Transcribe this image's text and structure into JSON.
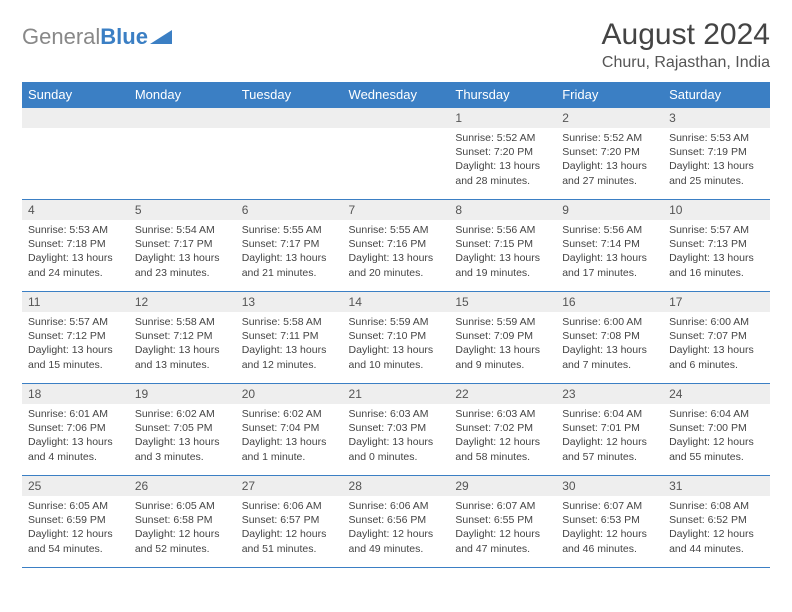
{
  "logo": {
    "part1": "General",
    "part2": "Blue"
  },
  "title": "August 2024",
  "location": "Churu, Rajasthan, India",
  "colors": {
    "header_bg": "#3b7fc4",
    "header_text": "#ffffff",
    "daynum_bg": "#eeeeee",
    "border": "#3b7fc4",
    "text": "#444444"
  },
  "fonts": {
    "title_size": 30,
    "location_size": 16,
    "header_size": 13,
    "daynum_size": 12,
    "content_size": 10.5
  },
  "weekdays": [
    "Sunday",
    "Monday",
    "Tuesday",
    "Wednesday",
    "Thursday",
    "Friday",
    "Saturday"
  ],
  "weeks": [
    [
      null,
      null,
      null,
      null,
      {
        "n": "1",
        "sr": "Sunrise: 5:52 AM",
        "ss": "Sunset: 7:20 PM",
        "d1": "Daylight: 13 hours",
        "d2": "and 28 minutes."
      },
      {
        "n": "2",
        "sr": "Sunrise: 5:52 AM",
        "ss": "Sunset: 7:20 PM",
        "d1": "Daylight: 13 hours",
        "d2": "and 27 minutes."
      },
      {
        "n": "3",
        "sr": "Sunrise: 5:53 AM",
        "ss": "Sunset: 7:19 PM",
        "d1": "Daylight: 13 hours",
        "d2": "and 25 minutes."
      }
    ],
    [
      {
        "n": "4",
        "sr": "Sunrise: 5:53 AM",
        "ss": "Sunset: 7:18 PM",
        "d1": "Daylight: 13 hours",
        "d2": "and 24 minutes."
      },
      {
        "n": "5",
        "sr": "Sunrise: 5:54 AM",
        "ss": "Sunset: 7:17 PM",
        "d1": "Daylight: 13 hours",
        "d2": "and 23 minutes."
      },
      {
        "n": "6",
        "sr": "Sunrise: 5:55 AM",
        "ss": "Sunset: 7:17 PM",
        "d1": "Daylight: 13 hours",
        "d2": "and 21 minutes."
      },
      {
        "n": "7",
        "sr": "Sunrise: 5:55 AM",
        "ss": "Sunset: 7:16 PM",
        "d1": "Daylight: 13 hours",
        "d2": "and 20 minutes."
      },
      {
        "n": "8",
        "sr": "Sunrise: 5:56 AM",
        "ss": "Sunset: 7:15 PM",
        "d1": "Daylight: 13 hours",
        "d2": "and 19 minutes."
      },
      {
        "n": "9",
        "sr": "Sunrise: 5:56 AM",
        "ss": "Sunset: 7:14 PM",
        "d1": "Daylight: 13 hours",
        "d2": "and 17 minutes."
      },
      {
        "n": "10",
        "sr": "Sunrise: 5:57 AM",
        "ss": "Sunset: 7:13 PM",
        "d1": "Daylight: 13 hours",
        "d2": "and 16 minutes."
      }
    ],
    [
      {
        "n": "11",
        "sr": "Sunrise: 5:57 AM",
        "ss": "Sunset: 7:12 PM",
        "d1": "Daylight: 13 hours",
        "d2": "and 15 minutes."
      },
      {
        "n": "12",
        "sr": "Sunrise: 5:58 AM",
        "ss": "Sunset: 7:12 PM",
        "d1": "Daylight: 13 hours",
        "d2": "and 13 minutes."
      },
      {
        "n": "13",
        "sr": "Sunrise: 5:58 AM",
        "ss": "Sunset: 7:11 PM",
        "d1": "Daylight: 13 hours",
        "d2": "and 12 minutes."
      },
      {
        "n": "14",
        "sr": "Sunrise: 5:59 AM",
        "ss": "Sunset: 7:10 PM",
        "d1": "Daylight: 13 hours",
        "d2": "and 10 minutes."
      },
      {
        "n": "15",
        "sr": "Sunrise: 5:59 AM",
        "ss": "Sunset: 7:09 PM",
        "d1": "Daylight: 13 hours",
        "d2": "and 9 minutes."
      },
      {
        "n": "16",
        "sr": "Sunrise: 6:00 AM",
        "ss": "Sunset: 7:08 PM",
        "d1": "Daylight: 13 hours",
        "d2": "and 7 minutes."
      },
      {
        "n": "17",
        "sr": "Sunrise: 6:00 AM",
        "ss": "Sunset: 7:07 PM",
        "d1": "Daylight: 13 hours",
        "d2": "and 6 minutes."
      }
    ],
    [
      {
        "n": "18",
        "sr": "Sunrise: 6:01 AM",
        "ss": "Sunset: 7:06 PM",
        "d1": "Daylight: 13 hours",
        "d2": "and 4 minutes."
      },
      {
        "n": "19",
        "sr": "Sunrise: 6:02 AM",
        "ss": "Sunset: 7:05 PM",
        "d1": "Daylight: 13 hours",
        "d2": "and 3 minutes."
      },
      {
        "n": "20",
        "sr": "Sunrise: 6:02 AM",
        "ss": "Sunset: 7:04 PM",
        "d1": "Daylight: 13 hours",
        "d2": "and 1 minute."
      },
      {
        "n": "21",
        "sr": "Sunrise: 6:03 AM",
        "ss": "Sunset: 7:03 PM",
        "d1": "Daylight: 13 hours",
        "d2": "and 0 minutes."
      },
      {
        "n": "22",
        "sr": "Sunrise: 6:03 AM",
        "ss": "Sunset: 7:02 PM",
        "d1": "Daylight: 12 hours",
        "d2": "and 58 minutes."
      },
      {
        "n": "23",
        "sr": "Sunrise: 6:04 AM",
        "ss": "Sunset: 7:01 PM",
        "d1": "Daylight: 12 hours",
        "d2": "and 57 minutes."
      },
      {
        "n": "24",
        "sr": "Sunrise: 6:04 AM",
        "ss": "Sunset: 7:00 PM",
        "d1": "Daylight: 12 hours",
        "d2": "and 55 minutes."
      }
    ],
    [
      {
        "n": "25",
        "sr": "Sunrise: 6:05 AM",
        "ss": "Sunset: 6:59 PM",
        "d1": "Daylight: 12 hours",
        "d2": "and 54 minutes."
      },
      {
        "n": "26",
        "sr": "Sunrise: 6:05 AM",
        "ss": "Sunset: 6:58 PM",
        "d1": "Daylight: 12 hours",
        "d2": "and 52 minutes."
      },
      {
        "n": "27",
        "sr": "Sunrise: 6:06 AM",
        "ss": "Sunset: 6:57 PM",
        "d1": "Daylight: 12 hours",
        "d2": "and 51 minutes."
      },
      {
        "n": "28",
        "sr": "Sunrise: 6:06 AM",
        "ss": "Sunset: 6:56 PM",
        "d1": "Daylight: 12 hours",
        "d2": "and 49 minutes."
      },
      {
        "n": "29",
        "sr": "Sunrise: 6:07 AM",
        "ss": "Sunset: 6:55 PM",
        "d1": "Daylight: 12 hours",
        "d2": "and 47 minutes."
      },
      {
        "n": "30",
        "sr": "Sunrise: 6:07 AM",
        "ss": "Sunset: 6:53 PM",
        "d1": "Daylight: 12 hours",
        "d2": "and 46 minutes."
      },
      {
        "n": "31",
        "sr": "Sunrise: 6:08 AM",
        "ss": "Sunset: 6:52 PM",
        "d1": "Daylight: 12 hours",
        "d2": "and 44 minutes."
      }
    ]
  ]
}
